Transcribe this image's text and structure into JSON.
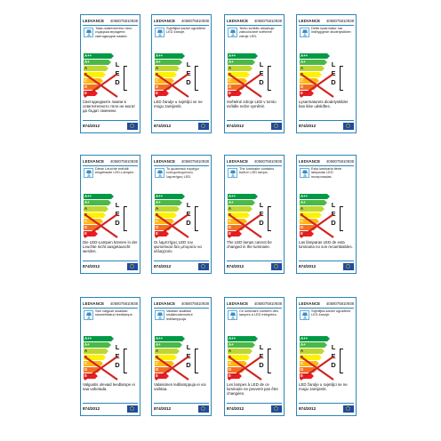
{
  "brand": "LEDVANCE",
  "product_code": "4058075810938",
  "regulation": "874/2012",
  "led_label": "L\nE\nD",
  "classes": [
    {
      "label": "A++",
      "color": "#009a45"
    },
    {
      "label": "A+",
      "color": "#4cb848"
    },
    {
      "label": "A",
      "color": "#bfd730"
    },
    {
      "label": "B",
      "color": "#fff200"
    },
    {
      "label": "C",
      "color": "#fdb813"
    },
    {
      "label": "D",
      "color": "#f37021"
    },
    {
      "label": "E",
      "color": "#ed1c24"
    }
  ],
  "strike_color": "#d2231f",
  "icons": {
    "lamp": "table-lamp-icon",
    "flag": "eu-flag-icon"
  },
  "labels": [
    {
      "desc": "Това осветително тяло съдържа вградени светодиодни лампи.",
      "note": "Светодиодните лампи в осветителното тяло не могат да бъдат сменени."
    },
    {
      "desc": "Svjetiljka sadrži ugrađene LED žarulje.",
      "note": "LED žarulje u svjetiljci se ne mogu zamijeniti."
    },
    {
      "desc": "Tento svítidlo obsahuje zabudované světelné zdroje LED.",
      "note": "Světelné zdroje LED v tomto svítidle nelze vyměnit."
    },
    {
      "desc": "Dette lysarmatur har indbyggede diodelyskilder.",
      "note": "Lysarmaturets diodelyskilder kan ikke udskiftes."
    },
    {
      "desc": "Diese Leuchte enthält eingebaute LED-Lampen.",
      "note": "Die LED-Lampen können in der Leuchte nicht ausgetauscht werden."
    },
    {
      "desc": "Το φωτιστικό περιέχει ενσωματωμένους λαμπτήρες LED.",
      "note": "Οι λαμπτήρες LED του φωτιστικού δεν μπορούν να αλλαχτούν."
    },
    {
      "desc": "The luminaire contains built-in LED lamps.",
      "note": "The LED lamps cannot be changed in the luminaire."
    },
    {
      "desc": "Esta luminaria tiene lámparas LED incorporadas.",
      "note": "Las lámparas LED de esta luminaria no son recambiables."
    },
    {
      "desc": "See valgusti sisaldab sisseehitatud leedlampe.",
      "note": "Valgustis olevaid leedlampe ei saa vahetada."
    },
    {
      "desc": "Valaisin sisältää sisäänrakennetut ledilamppuja.",
      "note": "Valaisimen ledilamppuja ei voi vaihtaa."
    },
    {
      "desc": "Ce luminaire contient des lampes à LED intégrées.",
      "note": "Les lampes à LED de ce luminaire ne peuvent pas être changées."
    },
    {
      "desc": "Svjetiljka sadrži ugrađene LED žarulje.",
      "note": "LED žarulje u svjetiljci se ne mogu zamijeniti."
    }
  ]
}
